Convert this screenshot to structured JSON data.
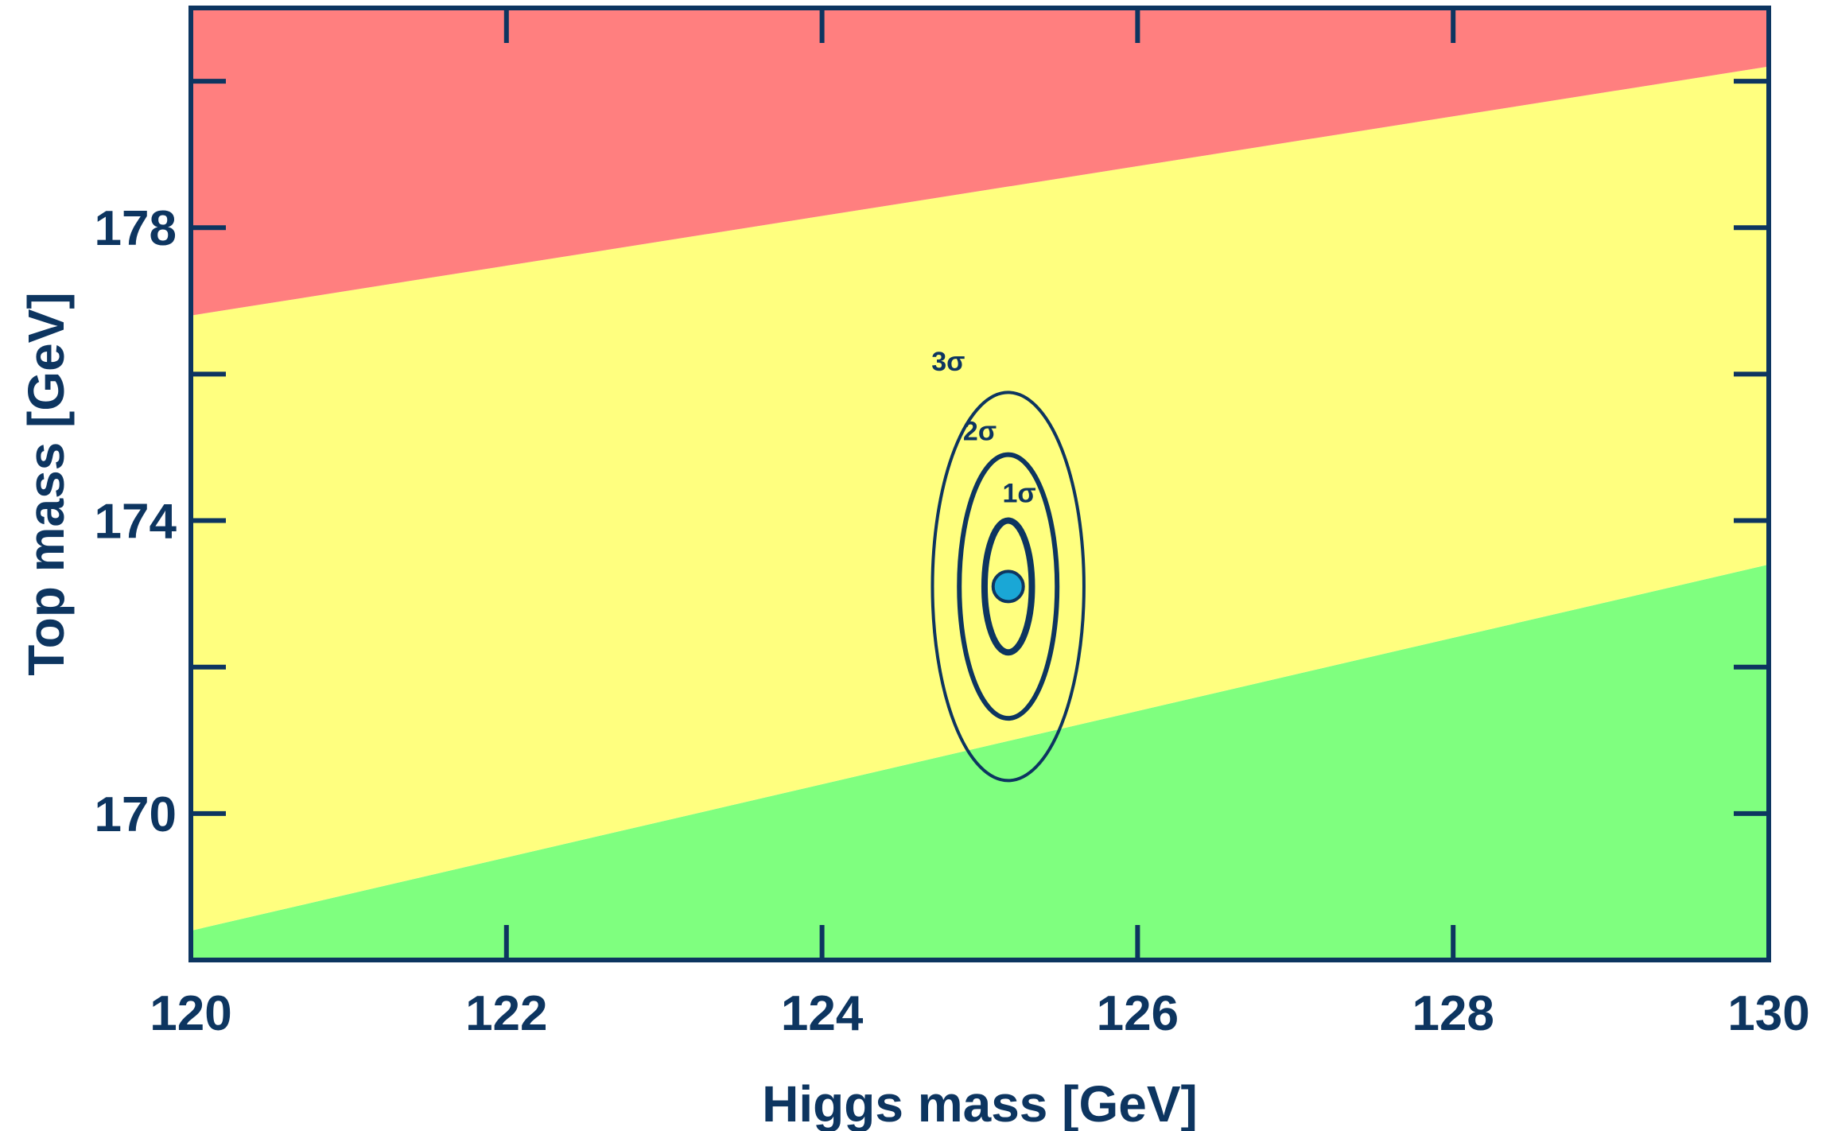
{
  "chart_data": {
    "type": "contour",
    "xlabel": "Higgs mass [GeV]",
    "ylabel": "Top mass [GeV]",
    "xlim": [
      120,
      130
    ],
    "ylim": [
      168,
      181
    ],
    "x_ticks": [
      120,
      122,
      124,
      126,
      128,
      130
    ],
    "x_tick_labels": [
      "120",
      "122",
      "124",
      "126",
      "128",
      "130"
    ],
    "y_ticks": [
      170,
      174,
      178
    ],
    "y_tick_labels": [
      "170",
      "174",
      "178"
    ],
    "y_minor_ticks": [
      172,
      176,
      180
    ],
    "regions": [
      {
        "name": "red",
        "color": "#ff7f7f",
        "lower_boundary": {
          "x": [
            120,
            130
          ],
          "y": [
            176.8,
            180.2
          ]
        }
      },
      {
        "name": "yellow",
        "color": "#ffff7f"
      },
      {
        "name": "green",
        "color": "#7fff7f",
        "upper_boundary": {
          "x": [
            120,
            130
          ],
          "y": [
            168.4,
            173.4
          ]
        }
      }
    ],
    "central_value": {
      "x": 125.18,
      "y": 173.1,
      "color": "#1aa7d6"
    },
    "contours": [
      {
        "label": "1σ",
        "x_center": 125.18,
        "y_center": 173.1,
        "x_halfwidth": 0.15,
        "y_halfwidth": 0.9,
        "label_x": 125.25,
        "label_y": 174.25
      },
      {
        "label": "2σ",
        "x_center": 125.18,
        "y_center": 173.1,
        "x_halfwidth": 0.31,
        "y_halfwidth": 1.8,
        "label_x": 125.0,
        "label_y": 175.1
      },
      {
        "label": "3σ",
        "x_center": 125.18,
        "y_center": 173.1,
        "x_halfwidth": 0.48,
        "y_halfwidth": 2.65,
        "label_x": 124.8,
        "label_y": 176.05
      }
    ],
    "grid": false,
    "legend": "none"
  }
}
